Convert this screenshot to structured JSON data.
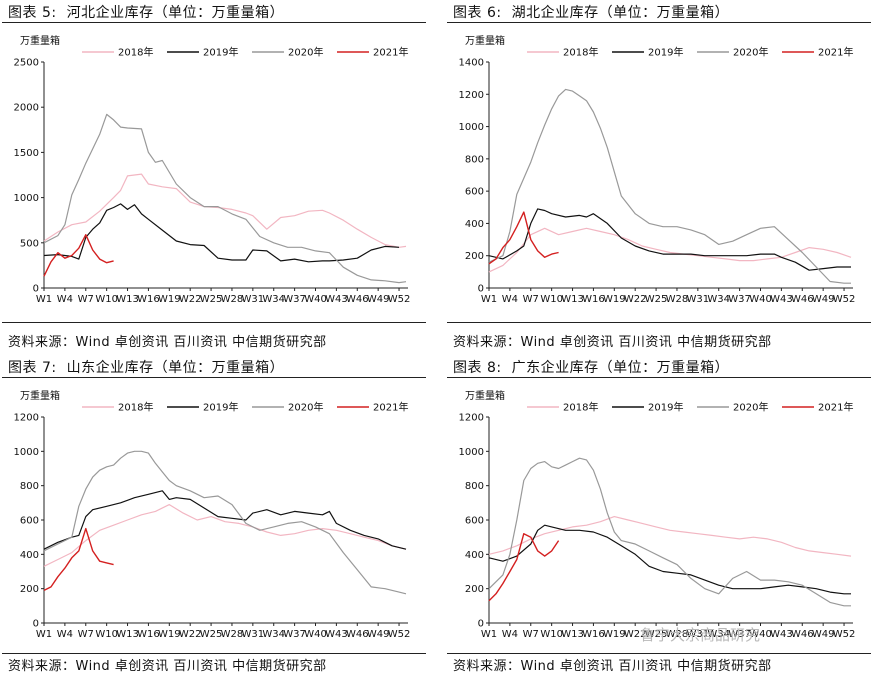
{
  "source_text": "资料来源：Wind 卓创资讯 百川资讯 中信期货研究部",
  "watermark": "鲁宁大宗商品研究",
  "colors": {
    "2018": "#f2b6c2",
    "2019": "#111111",
    "2020": "#999999",
    "2021": "#d42020"
  },
  "panels": [
    {
      "num": "图表 5:",
      "title": "河北企业库存（单位：万重量箱）"
    },
    {
      "num": "图表 6:",
      "title": "湖北企业库存（单位：万重量箱）"
    },
    {
      "num": "图表 7:",
      "title": "山东企业库存（单位：万重量箱）"
    },
    {
      "num": "图表 8:",
      "title": "广东企业库存（单位：万重量箱）"
    }
  ],
  "chart_data": [
    {
      "type": "line",
      "unit": "万重量箱",
      "x_tick_labels": [
        "W1",
        "W4",
        "W7",
        "W10",
        "W13",
        "W16",
        "W19",
        "W22",
        "W25",
        "W28",
        "W31",
        "W34",
        "W37",
        "W40",
        "W43",
        "W46",
        "W49",
        "W52"
      ],
      "yticks": [
        0,
        500,
        1000,
        1500,
        2000,
        2500
      ],
      "ylim": [
        0,
        2500
      ],
      "xlim": [
        1,
        53
      ],
      "series": [
        {
          "name": "2018年",
          "x": [
            1,
            3,
            5,
            7,
            9,
            11,
            12,
            13,
            15,
            16,
            18,
            20,
            22,
            24,
            26,
            28,
            30,
            31,
            33,
            35,
            37,
            39,
            41,
            42,
            44,
            46,
            48,
            50,
            52,
            53
          ],
          "values": [
            520,
            620,
            700,
            730,
            850,
            1000,
            1080,
            1240,
            1260,
            1150,
            1120,
            1100,
            950,
            900,
            890,
            870,
            830,
            800,
            650,
            780,
            800,
            850,
            860,
            830,
            750,
            650,
            560,
            480,
            450,
            460
          ]
        },
        {
          "name": "2019年",
          "x": [
            1,
            3,
            5,
            6,
            7,
            8,
            9,
            10,
            11,
            12,
            13,
            14,
            15,
            16,
            18,
            20,
            22,
            24,
            26,
            28,
            30,
            31,
            33,
            35,
            37,
            39,
            41,
            42,
            44,
            46,
            48,
            50,
            52
          ],
          "values": [
            360,
            370,
            350,
            320,
            560,
            650,
            720,
            860,
            890,
            930,
            870,
            920,
            820,
            760,
            640,
            520,
            480,
            470,
            330,
            310,
            310,
            420,
            410,
            300,
            320,
            290,
            300,
            300,
            310,
            330,
            420,
            460,
            450
          ]
        },
        {
          "name": "2020年",
          "x": [
            1,
            3,
            4,
            5,
            6,
            7,
            9,
            10,
            11,
            12,
            13,
            15,
            16,
            17,
            18,
            20,
            22,
            24,
            26,
            28,
            30,
            32,
            34,
            36,
            38,
            40,
            42,
            43,
            44,
            46,
            48,
            50,
            52,
            53
          ],
          "values": [
            500,
            580,
            700,
            1030,
            1200,
            1380,
            1700,
            1920,
            1860,
            1780,
            1770,
            1760,
            1500,
            1390,
            1410,
            1150,
            1000,
            900,
            900,
            820,
            760,
            570,
            500,
            450,
            450,
            410,
            390,
            310,
            230,
            140,
            90,
            80,
            60,
            70
          ]
        },
        {
          "name": "2021年",
          "x": [
            1,
            2,
            3,
            4,
            5,
            6,
            7,
            8,
            9,
            10,
            11
          ],
          "values": [
            130,
            290,
            390,
            330,
            360,
            440,
            590,
            420,
            320,
            280,
            300
          ]
        }
      ]
    },
    {
      "type": "line",
      "unit": "万重量箱",
      "x_tick_labels": [
        "W1",
        "W4",
        "W7",
        "W10",
        "W13",
        "W16",
        "W19",
        "W22",
        "W25",
        "W28",
        "W31",
        "W34",
        "W37",
        "W40",
        "W43",
        "W46",
        "W49",
        "W52"
      ],
      "yticks": [
        0,
        200,
        400,
        600,
        800,
        1000,
        1200,
        1400
      ],
      "ylim": [
        0,
        1400
      ],
      "xlim": [
        1,
        53
      ],
      "series": [
        {
          "name": "2018年",
          "x": [
            1,
            3,
            5,
            7,
            9,
            11,
            13,
            15,
            17,
            19,
            21,
            23,
            25,
            27,
            29,
            31,
            33,
            35,
            37,
            39,
            41,
            43,
            45,
            47,
            49,
            51,
            53
          ],
          "values": [
            100,
            140,
            220,
            330,
            370,
            330,
            350,
            370,
            350,
            330,
            300,
            260,
            240,
            220,
            210,
            200,
            190,
            180,
            170,
            170,
            180,
            190,
            220,
            250,
            240,
            220,
            190
          ]
        },
        {
          "name": "2019年",
          "x": [
            1,
            3,
            5,
            6,
            7,
            8,
            9,
            10,
            12,
            14,
            15,
            16,
            18,
            20,
            22,
            24,
            26,
            28,
            30,
            32,
            34,
            36,
            38,
            40,
            42,
            43,
            45,
            47,
            49,
            51,
            53
          ],
          "values": [
            200,
            180,
            230,
            260,
            400,
            490,
            480,
            460,
            440,
            450,
            440,
            460,
            400,
            310,
            260,
            230,
            210,
            210,
            210,
            200,
            200,
            200,
            200,
            210,
            210,
            190,
            160,
            110,
            120,
            130,
            130
          ]
        },
        {
          "name": "2020年",
          "x": [
            1,
            3,
            4,
            5,
            6,
            7,
            8,
            9,
            10,
            11,
            12,
            13,
            14,
            15,
            16,
            17,
            18,
            19,
            20,
            22,
            24,
            26,
            28,
            30,
            32,
            34,
            36,
            38,
            40,
            42,
            44,
            46,
            48,
            50,
            52,
            53
          ],
          "values": [
            160,
            200,
            350,
            580,
            680,
            780,
            900,
            1010,
            1110,
            1190,
            1230,
            1220,
            1190,
            1160,
            1090,
            990,
            870,
            720,
            570,
            460,
            400,
            380,
            380,
            360,
            330,
            270,
            290,
            330,
            370,
            380,
            300,
            220,
            130,
            40,
            30,
            30
          ]
        },
        {
          "name": "2021年",
          "x": [
            1,
            2,
            3,
            4,
            5,
            6,
            7,
            8,
            9,
            10,
            11
          ],
          "values": [
            150,
            180,
            250,
            300,
            380,
            470,
            300,
            230,
            190,
            210,
            220
          ]
        }
      ]
    },
    {
      "type": "line",
      "unit": "万重量箱",
      "x_tick_labels": [
        "W1",
        "W4",
        "W7",
        "W10",
        "W13",
        "W16",
        "W19",
        "W22",
        "W25",
        "W28",
        "W31",
        "W34",
        "W37",
        "W40",
        "W43",
        "W46",
        "W49",
        "W52"
      ],
      "yticks": [
        0,
        200,
        400,
        600,
        800,
        1000,
        1200
      ],
      "ylim": [
        0,
        1200
      ],
      "xlim": [
        1,
        53
      ],
      "series": [
        {
          "name": "2018年",
          "x": [
            1,
            3,
            5,
            7,
            9,
            11,
            13,
            15,
            17,
            19,
            21,
            23,
            25,
            27,
            29,
            31,
            33,
            35,
            37,
            39,
            41,
            43,
            45,
            47,
            49,
            51,
            53
          ],
          "values": [
            330,
            370,
            410,
            480,
            540,
            570,
            600,
            630,
            650,
            690,
            640,
            600,
            620,
            590,
            580,
            560,
            530,
            510,
            520,
            540,
            550,
            540,
            520,
            500,
            480,
            450,
            430
          ]
        },
        {
          "name": "2019年",
          "x": [
            1,
            3,
            5,
            6,
            7,
            8,
            10,
            12,
            14,
            16,
            18,
            19,
            20,
            22,
            24,
            26,
            28,
            30,
            31,
            33,
            35,
            37,
            39,
            41,
            42,
            43,
            45,
            47,
            49,
            51,
            53
          ],
          "values": [
            430,
            470,
            500,
            510,
            620,
            660,
            680,
            700,
            730,
            750,
            770,
            720,
            730,
            720,
            670,
            620,
            610,
            600,
            640,
            660,
            630,
            650,
            640,
            630,
            650,
            580,
            540,
            510,
            490,
            450,
            430
          ]
        },
        {
          "name": "2020年",
          "x": [
            1,
            3,
            5,
            6,
            7,
            8,
            9,
            10,
            11,
            12,
            13,
            14,
            15,
            16,
            17,
            18,
            19,
            20,
            22,
            24,
            26,
            28,
            30,
            32,
            34,
            36,
            38,
            40,
            42,
            44,
            46,
            48,
            50,
            52,
            53
          ],
          "values": [
            420,
            460,
            500,
            680,
            780,
            850,
            890,
            910,
            920,
            960,
            990,
            1000,
            1000,
            990,
            930,
            880,
            830,
            800,
            770,
            730,
            740,
            690,
            580,
            540,
            560,
            580,
            590,
            560,
            520,
            410,
            310,
            210,
            200,
            180,
            170
          ]
        },
        {
          "name": "2021年",
          "x": [
            1,
            2,
            3,
            4,
            5,
            6,
            7,
            8,
            9,
            10,
            11
          ],
          "values": [
            190,
            210,
            270,
            320,
            380,
            420,
            550,
            420,
            360,
            350,
            340
          ]
        }
      ]
    },
    {
      "type": "line",
      "unit": "万重量箱",
      "x_tick_labels": [
        "W1",
        "W4",
        "W7",
        "W10",
        "W13",
        "W16",
        "W19",
        "W22",
        "W25",
        "W28",
        "W31",
        "W34",
        "W37",
        "W40",
        "W43",
        "W46",
        "W49",
        "W52"
      ],
      "yticks": [
        0,
        200,
        400,
        600,
        800,
        1000,
        1200
      ],
      "ylim": [
        0,
        1200
      ],
      "xlim": [
        1,
        53
      ],
      "series": [
        {
          "name": "2018年",
          "x": [
            1,
            3,
            5,
            7,
            9,
            11,
            13,
            15,
            17,
            19,
            21,
            23,
            25,
            27,
            29,
            31,
            33,
            35,
            37,
            39,
            41,
            43,
            45,
            47,
            49,
            51,
            53
          ],
          "values": [
            400,
            420,
            450,
            490,
            520,
            540,
            560,
            570,
            590,
            620,
            600,
            580,
            560,
            540,
            530,
            520,
            510,
            500,
            490,
            500,
            490,
            470,
            440,
            420,
            410,
            400,
            390
          ]
        },
        {
          "name": "2019年",
          "x": [
            1,
            3,
            5,
            7,
            8,
            9,
            10,
            12,
            14,
            16,
            18,
            20,
            22,
            24,
            26,
            28,
            30,
            32,
            34,
            36,
            38,
            40,
            42,
            44,
            46,
            48,
            50,
            52,
            53
          ],
          "values": [
            380,
            360,
            390,
            460,
            540,
            570,
            560,
            540,
            540,
            530,
            500,
            450,
            400,
            330,
            300,
            290,
            280,
            250,
            220,
            200,
            200,
            200,
            210,
            220,
            210,
            200,
            180,
            170,
            170
          ]
        },
        {
          "name": "2020年",
          "x": [
            1,
            3,
            4,
            5,
            6,
            7,
            8,
            9,
            10,
            11,
            12,
            13,
            14,
            15,
            16,
            17,
            18,
            19,
            20,
            22,
            24,
            26,
            28,
            30,
            32,
            34,
            36,
            38,
            40,
            42,
            44,
            46,
            48,
            50,
            52,
            53
          ],
          "values": [
            200,
            280,
            400,
            600,
            830,
            900,
            930,
            940,
            910,
            900,
            920,
            940,
            960,
            950,
            890,
            780,
            640,
            530,
            480,
            460,
            420,
            380,
            340,
            260,
            200,
            170,
            260,
            300,
            250,
            250,
            240,
            220,
            170,
            120,
            100,
            100
          ]
        },
        {
          "name": "2021年",
          "x": [
            1,
            2,
            3,
            4,
            5,
            6,
            7,
            8,
            9,
            10,
            11
          ],
          "values": [
            130,
            170,
            230,
            300,
            370,
            520,
            500,
            420,
            390,
            420,
            480
          ]
        }
      ]
    }
  ]
}
